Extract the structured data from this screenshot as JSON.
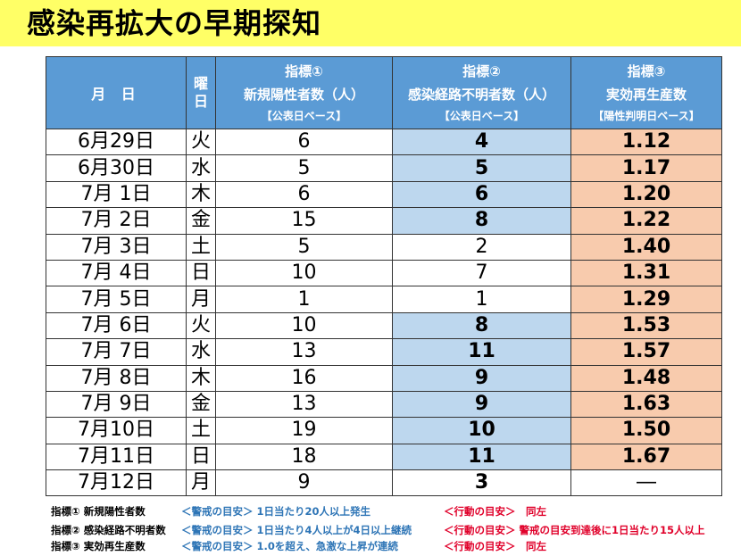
{
  "title": "感染再拡大の早期探知",
  "header": {
    "date": "月 日",
    "day": [
      "曜",
      "日"
    ],
    "ind1": {
      "name": "指標①",
      "desc": "新規陽性者数（人）",
      "basis": "【公表日ベース】"
    },
    "ind2": {
      "name": "指標②",
      "desc": "感染経路不明者数（人）",
      "basis": "【公表日ベース】"
    },
    "ind3": {
      "name": "指標③",
      "desc": "実効再生産数",
      "basis": "【陽性判明日ベース】"
    }
  },
  "rows": [
    {
      "date": "6月29日",
      "day": "火",
      "i1": "6",
      "i2": "4",
      "i3": "1.12",
      "i2hl": true,
      "i3hl": true
    },
    {
      "date": "6月30日",
      "day": "水",
      "i1": "5",
      "i2": "5",
      "i3": "1.17",
      "i2hl": true,
      "i3hl": true
    },
    {
      "date": "7月 1日",
      "day": "木",
      "i1": "6",
      "i2": "6",
      "i3": "1.20",
      "i2hl": true,
      "i3hl": true
    },
    {
      "date": "7月 2日",
      "day": "金",
      "i1": "15",
      "i2": "8",
      "i3": "1.22",
      "i2hl": true,
      "i3hl": true
    },
    {
      "date": "7月 3日",
      "day": "土",
      "i1": "5",
      "i2": "2",
      "i3": "1.40",
      "i2hl": false,
      "i3hl": true
    },
    {
      "date": "7月 4日",
      "day": "日",
      "i1": "10",
      "i2": "7",
      "i3": "1.31",
      "i2hl": false,
      "i3hl": true
    },
    {
      "date": "7月 5日",
      "day": "月",
      "i1": "1",
      "i2": "1",
      "i3": "1.29",
      "i2hl": false,
      "i3hl": true
    },
    {
      "date": "7月 6日",
      "day": "火",
      "i1": "10",
      "i2": "8",
      "i3": "1.53",
      "i2hl": true,
      "i3hl": true
    },
    {
      "date": "7月 7日",
      "day": "水",
      "i1": "13",
      "i2": "11",
      "i3": "1.57",
      "i2hl": true,
      "i3hl": true
    },
    {
      "date": "7月 8日",
      "day": "木",
      "i1": "16",
      "i2": "9",
      "i3": "1.48",
      "i2hl": true,
      "i3hl": true
    },
    {
      "date": "7月 9日",
      "day": "金",
      "i1": "13",
      "i2": "9",
      "i3": "1.63",
      "i2hl": true,
      "i3hl": true
    },
    {
      "date": "7月10日",
      "day": "土",
      "i1": "19",
      "i2": "10",
      "i3": "1.50",
      "i2hl": true,
      "i3hl": true
    },
    {
      "date": "7月11日",
      "day": "日",
      "i1": "18",
      "i2": "11",
      "i3": "1.67",
      "i2hl": true,
      "i3hl": true
    },
    {
      "date": "7月12日",
      "day": "月",
      "i1": "9",
      "i2": "3",
      "i3": "―",
      "i2hl": false,
      "i3hl": false,
      "i2bold": true
    }
  ],
  "notes": [
    {
      "label": "指標① 新規陽性者数",
      "warn": "＜警戒の目安＞ 1日当たり20人以上発生",
      "act": "＜行動の目安＞　同左"
    },
    {
      "label": "指標② 感染経路不明者数",
      "warn": "＜警戒の目安＞ 1日当たり4人以上が4日以上継続",
      "act": "＜行動の目安＞ 警戒の目安到達後に1日当たり15人以上"
    },
    {
      "label": "指標③ 実効再生産数",
      "warn": "＜警戒の目安＞ 1.0を超え、急激な上昇が連続",
      "act": "＜行動の目安＞　同左"
    }
  ],
  "colors": {
    "title_bg": "#ffff66",
    "header_bg": "#5b9bd5",
    "ind2_hl": "#bdd7ee",
    "ind3_hl": "#f8cbad",
    "warn": "#2e75b6",
    "act": "#e0002a"
  }
}
